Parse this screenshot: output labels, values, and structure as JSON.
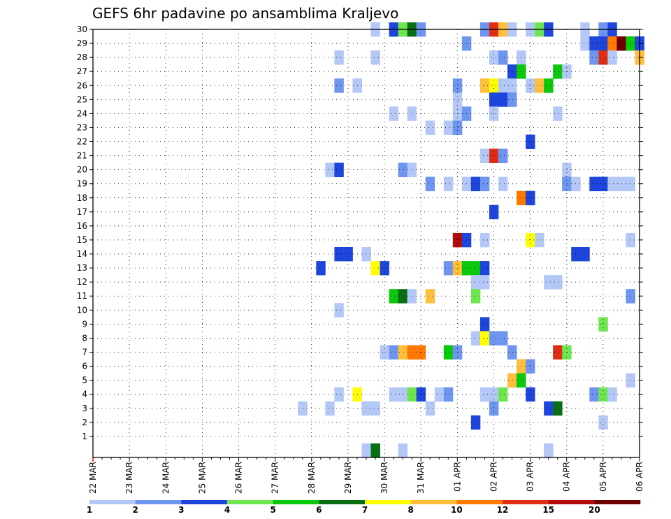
{
  "chart_data": {
    "type": "heatmap",
    "title": "GEFS 6hr padavine po ansamblima Kraljevo",
    "xlabel": "",
    "ylabel": "",
    "x_tick_labels": [
      "22 MAR",
      "23 MAR",
      "24 MAR",
      "25 MAR",
      "26 MAR",
      "27 MAR",
      "28 MAR",
      "29 MAR",
      "30 MAR",
      "31 MAR",
      "01 APR",
      "02 APR",
      "03 APR",
      "04 APR",
      "05 APR",
      "06 APR"
    ],
    "y_tick_labels": [
      "1",
      "2",
      "3",
      "4",
      "5",
      "6",
      "7",
      "8",
      "9",
      "10",
      "11",
      "12",
      "13",
      "14",
      "15",
      "16",
      "17",
      "18",
      "19",
      "20",
      "21",
      "22",
      "23",
      "24",
      "25",
      "26",
      "27",
      "28",
      "29",
      "30"
    ],
    "x_unit": "6-hour step since 22 MAR 00Z",
    "xlim": [
      0,
      60
    ],
    "ylim": [
      0,
      30
    ],
    "grid": true,
    "legend_position": "bottom",
    "legend_labels": [
      "1",
      "2",
      "3",
      "4",
      "5",
      "6",
      "7",
      "8",
      "10",
      "12",
      "15",
      "20"
    ],
    "colors": [
      "#b4c8f8",
      "#6e96f0",
      "#1e46dc",
      "#6ee650",
      "#0ac80a",
      "#0a6e14",
      "#ffff00",
      "#ffbe3c",
      "#ff7800",
      "#e12d14",
      "#b40a0a",
      "#6e0000"
    ],
    "levels": {
      "1": "1-2",
      "2": "2-3",
      "3": "3-4",
      "4": "4-5",
      "5": "5-6",
      "6": "6-7",
      "7": "7-8",
      "8": "8-10",
      "9": "10-12",
      "10": "12-15",
      "11": "15-20",
      "12": "20+"
    },
    "cells": [
      [
        30,
        31,
        1
      ],
      [
        30,
        33,
        3
      ],
      [
        30,
        34,
        4
      ],
      [
        30,
        35,
        6
      ],
      [
        30,
        36,
        2
      ],
      [
        30,
        43,
        2
      ],
      [
        30,
        44,
        10
      ],
      [
        30,
        45,
        8
      ],
      [
        30,
        46,
        1
      ],
      [
        30,
        48,
        1
      ],
      [
        30,
        49,
        4
      ],
      [
        30,
        50,
        3
      ],
      [
        30,
        54,
        1
      ],
      [
        30,
        56,
        2
      ],
      [
        30,
        57,
        3
      ],
      [
        29,
        41,
        2
      ],
      [
        29,
        54,
        1
      ],
      [
        29,
        55,
        3
      ],
      [
        29,
        56,
        3
      ],
      [
        29,
        57,
        9
      ],
      [
        29,
        58,
        12
      ],
      [
        29,
        59,
        5
      ],
      [
        29,
        60,
        3
      ],
      [
        28,
        27,
        1
      ],
      [
        28,
        31,
        1
      ],
      [
        28,
        44,
        1
      ],
      [
        28,
        45,
        2
      ],
      [
        28,
        47,
        1
      ],
      [
        28,
        55,
        2
      ],
      [
        28,
        56,
        10
      ],
      [
        28,
        57,
        1
      ],
      [
        28,
        60,
        8
      ],
      [
        27,
        46,
        3
      ],
      [
        27,
        47,
        5
      ],
      [
        27,
        51,
        5
      ],
      [
        27,
        52,
        1
      ],
      [
        26,
        27,
        2
      ],
      [
        26,
        29,
        1
      ],
      [
        26,
        40,
        2
      ],
      [
        26,
        43,
        8
      ],
      [
        26,
        44,
        7
      ],
      [
        26,
        45,
        1
      ],
      [
        26,
        46,
        1
      ],
      [
        26,
        48,
        1
      ],
      [
        26,
        49,
        8
      ],
      [
        26,
        50,
        5
      ],
      [
        25,
        40,
        1
      ],
      [
        25,
        44,
        3
      ],
      [
        25,
        45,
        3
      ],
      [
        25,
        46,
        2
      ],
      [
        24,
        33,
        1
      ],
      [
        24,
        35,
        1
      ],
      [
        24,
        40,
        1
      ],
      [
        24,
        41,
        2
      ],
      [
        24,
        44,
        1
      ],
      [
        24,
        51,
        1
      ],
      [
        23,
        37,
        1
      ],
      [
        23,
        39,
        1
      ],
      [
        23,
        40,
        2
      ],
      [
        22,
        48,
        3
      ],
      [
        21,
        43,
        1
      ],
      [
        21,
        44,
        10
      ],
      [
        21,
        45,
        2
      ],
      [
        20,
        26,
        1
      ],
      [
        20,
        27,
        3
      ],
      [
        20,
        34,
        2
      ],
      [
        20,
        35,
        1
      ],
      [
        20,
        52,
        1
      ],
      [
        19,
        37,
        2
      ],
      [
        19,
        39,
        1
      ],
      [
        19,
        41,
        1
      ],
      [
        19,
        42,
        3
      ],
      [
        19,
        43,
        2
      ],
      [
        19,
        45,
        1
      ],
      [
        19,
        52,
        2
      ],
      [
        19,
        53,
        1
      ],
      [
        19,
        55,
        3
      ],
      [
        19,
        56,
        3
      ],
      [
        19,
        57,
        1
      ],
      [
        19,
        58,
        1
      ],
      [
        19,
        59,
        1
      ],
      [
        18,
        47,
        9
      ],
      [
        18,
        48,
        3
      ],
      [
        17,
        44,
        3
      ],
      [
        15,
        40,
        11
      ],
      [
        15,
        41,
        3
      ],
      [
        15,
        43,
        1
      ],
      [
        15,
        48,
        7
      ],
      [
        15,
        49,
        1
      ],
      [
        15,
        59,
        1
      ],
      [
        14,
        27,
        3
      ],
      [
        14,
        28,
        3
      ],
      [
        14,
        30,
        1
      ],
      [
        14,
        53,
        3
      ],
      [
        14,
        54,
        3
      ],
      [
        13,
        25,
        3
      ],
      [
        13,
        31,
        7
      ],
      [
        13,
        32,
        3
      ],
      [
        13,
        39,
        2
      ],
      [
        13,
        40,
        8
      ],
      [
        13,
        41,
        5
      ],
      [
        13,
        42,
        5
      ],
      [
        13,
        43,
        3
      ],
      [
        12,
        42,
        1
      ],
      [
        12,
        43,
        1
      ],
      [
        12,
        50,
        1
      ],
      [
        12,
        51,
        1
      ],
      [
        11,
        33,
        5
      ],
      [
        11,
        34,
        6
      ],
      [
        11,
        35,
        1
      ],
      [
        11,
        37,
        8
      ],
      [
        11,
        42,
        4
      ],
      [
        11,
        59,
        2
      ],
      [
        10,
        27,
        1
      ],
      [
        9,
        43,
        3
      ],
      [
        9,
        56,
        4
      ],
      [
        8,
        42,
        1
      ],
      [
        8,
        43,
        7
      ],
      [
        8,
        44,
        2
      ],
      [
        8,
        45,
        2
      ],
      [
        7,
        32,
        1
      ],
      [
        7,
        33,
        2
      ],
      [
        7,
        34,
        8
      ],
      [
        7,
        35,
        9
      ],
      [
        7,
        36,
        9
      ],
      [
        7,
        39,
        5
      ],
      [
        7,
        40,
        2
      ],
      [
        7,
        46,
        2
      ],
      [
        7,
        51,
        10
      ],
      [
        7,
        52,
        4
      ],
      [
        6,
        47,
        8
      ],
      [
        6,
        48,
        2
      ],
      [
        5,
        46,
        8
      ],
      [
        5,
        47,
        5
      ],
      [
        5,
        59,
        1
      ],
      [
        4,
        27,
        1
      ],
      [
        4,
        29,
        7
      ],
      [
        4,
        33,
        1
      ],
      [
        4,
        34,
        1
      ],
      [
        4,
        35,
        4
      ],
      [
        4,
        36,
        3
      ],
      [
        4,
        38,
        1
      ],
      [
        4,
        39,
        2
      ],
      [
        4,
        43,
        1
      ],
      [
        4,
        44,
        1
      ],
      [
        4,
        45,
        4
      ],
      [
        4,
        48,
        3
      ],
      [
        4,
        55,
        2
      ],
      [
        4,
        56,
        4
      ],
      [
        4,
        57,
        1
      ],
      [
        3,
        23,
        1
      ],
      [
        3,
        26,
        1
      ],
      [
        3,
        30,
        1
      ],
      [
        3,
        31,
        1
      ],
      [
        3,
        37,
        1
      ],
      [
        3,
        44,
        2
      ],
      [
        3,
        50,
        3
      ],
      [
        3,
        51,
        6
      ],
      [
        2,
        42,
        3
      ],
      [
        2,
        56,
        1
      ],
      [
        0,
        30,
        1
      ],
      [
        0,
        31,
        6
      ],
      [
        0,
        34,
        1
      ],
      [
        0,
        50,
        1
      ]
    ]
  }
}
